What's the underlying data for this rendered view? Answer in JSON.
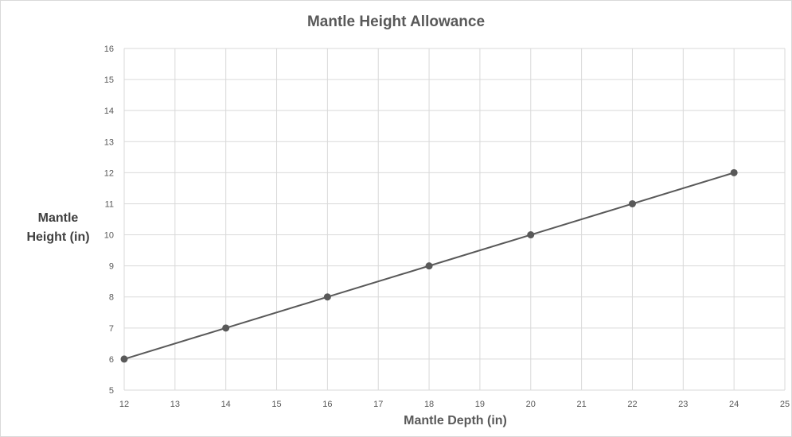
{
  "chart_data": {
    "type": "line",
    "title": "Mantle Height Allowance",
    "xlabel": "Mantle Depth (in)",
    "ylabel_line1": "Mantle",
    "ylabel_line2": "Height (in)",
    "xlim": [
      12,
      25
    ],
    "ylim": [
      5,
      16
    ],
    "x_ticks": [
      12,
      13,
      14,
      15,
      16,
      17,
      18,
      19,
      20,
      21,
      22,
      23,
      24,
      25
    ],
    "y_ticks": [
      5,
      6,
      7,
      8,
      9,
      10,
      11,
      12,
      13,
      14,
      15,
      16
    ],
    "grid": true,
    "legend": "none",
    "series": [
      {
        "x": [
          12,
          14,
          16,
          18,
          20,
          22,
          24
        ],
        "y": [
          6,
          7,
          8,
          9,
          10,
          11,
          12
        ],
        "color": "#595959",
        "marker": "circle"
      }
    ]
  }
}
